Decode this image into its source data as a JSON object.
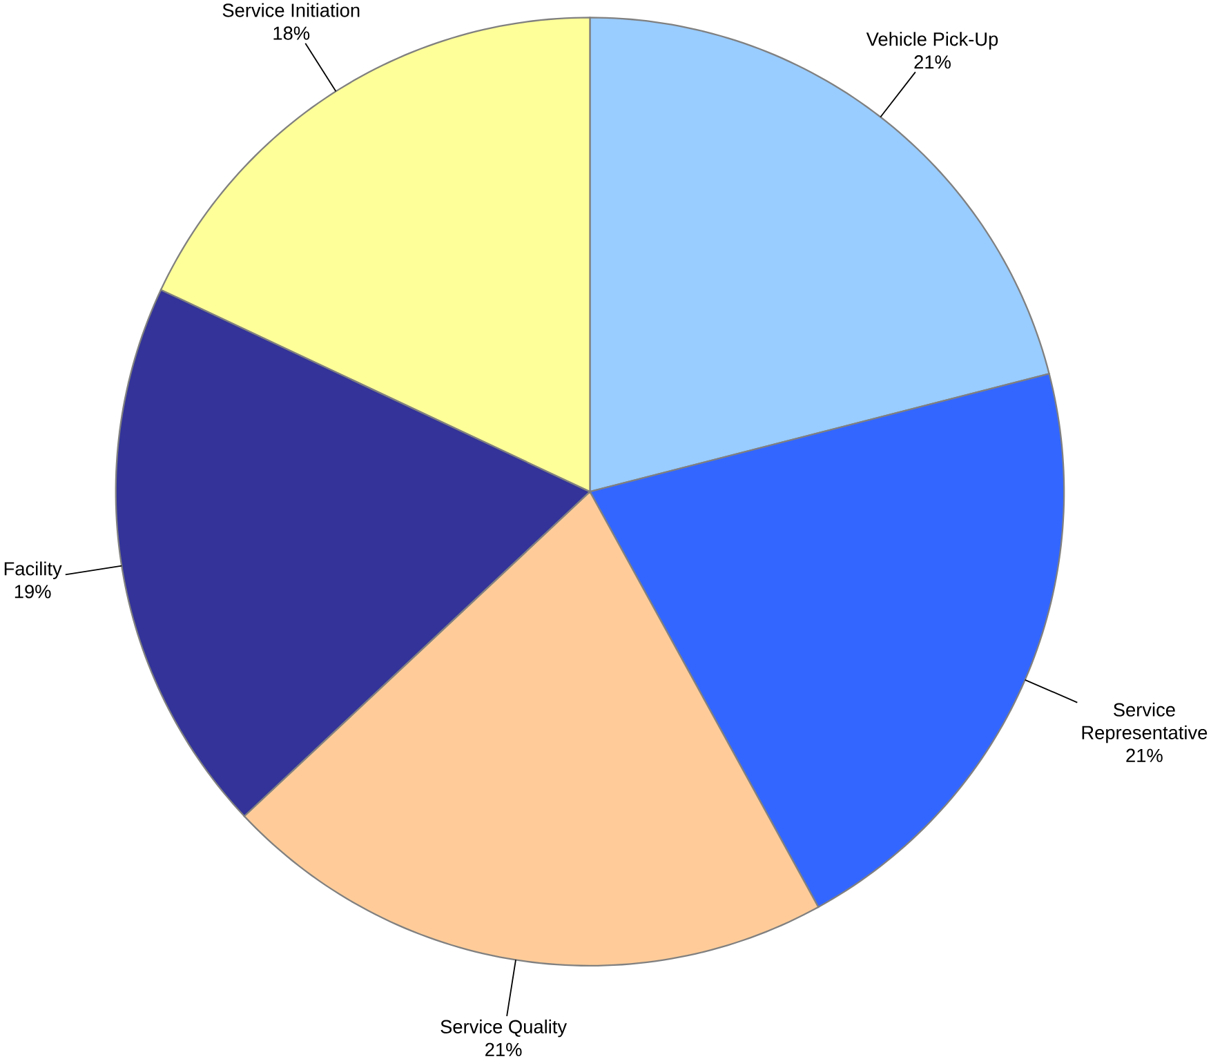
{
  "chart_data": {
    "type": "pie",
    "categories": [
      "Vehicle Pick-Up",
      "Service Representative",
      "Service Quality",
      "Facility",
      "Service Initiation"
    ],
    "values": [
      21,
      21,
      21,
      19,
      18
    ],
    "value_labels": [
      "21%",
      "21%",
      "21%",
      "19%",
      "18%"
    ],
    "colors": [
      "#99ccff",
      "#3366ff",
      "#ffcc99",
      "#333399",
      "#ffff99"
    ]
  }
}
